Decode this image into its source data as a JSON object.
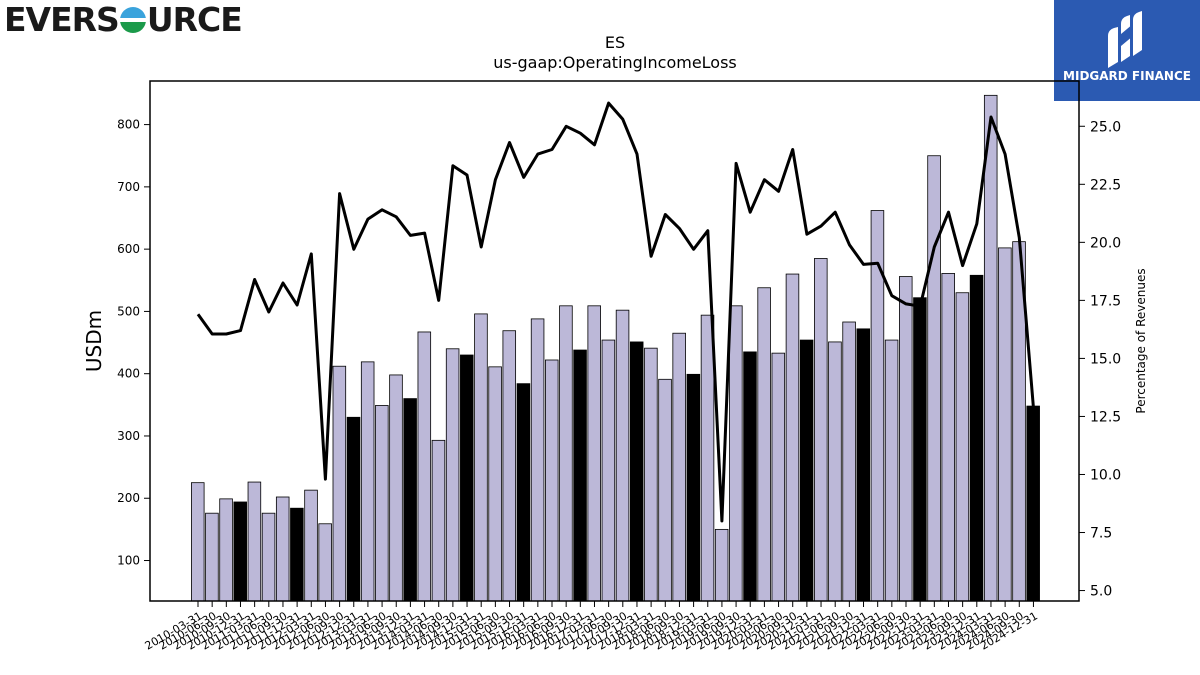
{
  "logos": {
    "left": {
      "text_before": "EVERS",
      "text_after": "URCE",
      "icon": "globe-o-icon"
    },
    "right": {
      "brand": "MIDGARD FINANCE",
      "icon": "midgard-m-icon"
    }
  },
  "colors": {
    "bar_default": "#bcb8d8",
    "bar_q4": "#000000",
    "line": "#000000",
    "logo_bg": "#2b5ab2"
  },
  "chart_data": {
    "type": "bar",
    "title": "ES",
    "subtitle": "us-gaap:OperatingIncomeLoss",
    "ylabel": "USDm",
    "y2label": "Percentage of Revenues",
    "ylim": [
      35,
      870
    ],
    "y2lim": [
      4.55,
      26.95
    ],
    "yticks": [
      100,
      200,
      300,
      400,
      500,
      600,
      700,
      800
    ],
    "y2ticks": [
      "5.0",
      "7.5",
      "10.0",
      "12.5",
      "15.0",
      "17.5",
      "20.0",
      "22.5",
      "25.0"
    ],
    "categories": [
      "2010-03-31",
      "2010-06-30",
      "2010-09-30",
      "2010-12-31",
      "2011-03-31",
      "2011-06-30",
      "2011-09-30",
      "2011-12-31",
      "2012-03-31",
      "2012-06-30",
      "2012-09-30",
      "2012-12-31",
      "2013-03-31",
      "2013-06-30",
      "2013-09-30",
      "2013-12-31",
      "2014-03-31",
      "2014-06-30",
      "2014-09-30",
      "2014-12-31",
      "2015-03-31",
      "2015-06-30",
      "2015-09-30",
      "2015-12-31",
      "2016-03-31",
      "2016-06-30",
      "2016-09-30",
      "2016-12-31",
      "2017-03-31",
      "2017-06-30",
      "2017-09-30",
      "2017-12-31",
      "2018-03-31",
      "2018-06-30",
      "2018-09-30",
      "2018-12-31",
      "2019-03-31",
      "2019-06-30",
      "2019-09-30",
      "2019-12-31",
      "2020-03-31",
      "2020-06-30",
      "2020-09-30",
      "2020-12-31",
      "2021-03-31",
      "2021-06-30",
      "2021-09-30",
      "2021-12-31",
      "2022-03-31",
      "2022-06-30",
      "2022-09-30",
      "2022-12-31",
      "2023-03-31",
      "2023-06-30",
      "2023-09-30",
      "2023-12-31",
      "2024-03-31",
      "2024-06-30",
      "2024-09-30",
      "2024-12-31"
    ],
    "xtick_labels": [
      "2010-03-31",
      "2010-06-30",
      "2010-09-30",
      "2010-12-31",
      "2011-03-31",
      "2011-06-30",
      "2011-09-30",
      "2011-12-31",
      "2012-03-31",
      "2012-06-30",
      "2012-09-30",
      "2012-12-31",
      "2013-03-31",
      "2013-06-30",
      "2013-09-30",
      "2013-12-31",
      "2014-03-31",
      "2014-06-30",
      "2014-09-30",
      "2014-12-31",
      "2015-03-31",
      "2015-06-30",
      "2015-09-30",
      "2015-12-31",
      "2016-03-31",
      "2016-06-30",
      "2016-09-30",
      "2016-12-31",
      "2017-03-31",
      "2017-06-30",
      "2017-09-30",
      "2017-12-31",
      "2018-03-31",
      "2018-06-30",
      "2018-09-30",
      "2018-12-31",
      "2019-03-31",
      "2019-06-30",
      "2019-09-30",
      "2019-12-31",
      "2020-03-31",
      "2020-06-30",
      "2020-09-30",
      "2020-12-31",
      "2021-03-31",
      "2021-06-30",
      "2021-09-30",
      "2021-12-31",
      "2022-03-31",
      "2022-06-30",
      "2022-09-30",
      "2022-12-31",
      "2023-03-31",
      "2023-06-30",
      "2023-09-30",
      "2023-12-31",
      "2024-03-31",
      "2024-06-30",
      "2024-09-30",
      "2024-12-31"
    ],
    "series": [
      {
        "type": "bar",
        "axis": "left",
        "values": [
          225,
          176,
          199,
          194,
          226,
          176,
          202,
          184,
          213,
          159,
          412,
          330,
          419,
          349,
          398,
          360,
          467,
          293,
          440,
          430,
          496,
          411,
          469,
          384,
          488,
          422,
          509,
          438,
          509,
          454,
          502,
          451,
          441,
          391,
          465,
          399,
          494,
          150,
          509,
          435,
          538,
          433,
          560,
          454,
          585,
          451,
          483,
          472,
          662,
          454,
          556,
          522,
          750,
          561,
          530,
          558,
          847,
          602,
          612,
          348
        ],
        "q4_highlight": true
      },
      {
        "type": "line",
        "axis": "right",
        "values": [
          16.9,
          16.05,
          16.05,
          16.2,
          18.4,
          17.0,
          18.25,
          17.3,
          19.5,
          9.8,
          22.1,
          19.7,
          21.0,
          21.4,
          21.1,
          20.3,
          20.4,
          17.5,
          23.3,
          22.9,
          19.8,
          22.7,
          24.3,
          22.8,
          23.8,
          24.0,
          25.0,
          24.7,
          24.2,
          26.0,
          25.3,
          23.8,
          19.4,
          21.2,
          20.6,
          19.7,
          20.5,
          8.0,
          23.4,
          21.3,
          22.7,
          22.2,
          24.0,
          20.35,
          20.7,
          21.3,
          19.9,
          19.05,
          19.1,
          17.7,
          17.35,
          17.25,
          19.8,
          21.3,
          19.0,
          20.8,
          25.4,
          23.8,
          20.2,
          12.9
        ]
      }
    ],
    "grid": false,
    "legend": "none"
  }
}
